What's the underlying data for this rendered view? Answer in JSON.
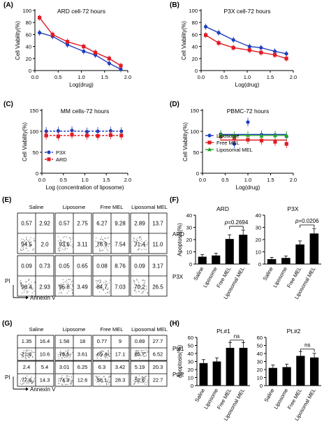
{
  "chart_data": [
    {
      "panel": "(A)",
      "type": "line",
      "title": "ARD cell-72 hours",
      "xlabel": "Log(drug)",
      "ylabel": "Cell Viability(%)",
      "xlim": [
        0,
        2.0
      ],
      "ylim": [
        0,
        100
      ],
      "xticks": [
        "0.0",
        "0.5",
        "1.0",
        "1.5",
        "2.0"
      ],
      "yticks": [
        "0",
        "20",
        "40",
        "60",
        "80",
        "100"
      ],
      "series": [
        {
          "color": "#1f3fbf",
          "marker": "circle",
          "x": [
            0.1,
            0.38,
            0.7,
            1.05,
            1.3,
            1.6,
            1.85
          ],
          "y": [
            63,
            57,
            43,
            32,
            26,
            12,
            2
          ]
        },
        {
          "color": "#e01b24",
          "marker": "square",
          "x": [
            0.1,
            0.38,
            0.7,
            1.05,
            1.3,
            1.6,
            1.85
          ],
          "y": [
            88,
            60,
            48,
            40,
            30,
            20,
            8
          ]
        }
      ]
    },
    {
      "panel": "(B)",
      "type": "line",
      "title": "P3X cell-72 hours",
      "xlabel": "Log(drug)",
      "ylabel": "Cell Viability(%)",
      "xlim": [
        0,
        2.0
      ],
      "ylim": [
        0,
        100
      ],
      "xticks": [
        "0.0",
        "0.5",
        "1.0",
        "1.5",
        "2.0"
      ],
      "yticks": [
        "0",
        "20",
        "40",
        "60",
        "80",
        "100"
      ],
      "series": [
        {
          "color": "#1f3fbf",
          "marker": "circle",
          "x": [
            0.1,
            0.38,
            0.7,
            1.05,
            1.3,
            1.6,
            1.85
          ],
          "y": [
            73,
            63,
            51,
            40,
            38,
            32,
            28
          ]
        },
        {
          "color": "#e01b24",
          "marker": "square",
          "x": [
            0.1,
            0.38,
            0.7,
            1.05,
            1.3,
            1.6,
            1.85
          ],
          "y": [
            59,
            46,
            38,
            34,
            30,
            26,
            20
          ]
        }
      ]
    },
    {
      "panel": "(C)",
      "type": "line",
      "title": "MM cells-72 hours",
      "xlabel": "Log (concentration of liposome)",
      "ylabel": "Cell Viability(%)",
      "xlim": [
        0,
        2.0
      ],
      "ylim": [
        0,
        150
      ],
      "xticks": [
        "0.0",
        "0.5",
        "1.0",
        "1.5",
        "2.0"
      ],
      "yticks": [
        "0",
        "50",
        "100",
        "150"
      ],
      "legend": [
        "P3X",
        "ARD"
      ],
      "legend_position": "bottom-left",
      "series": [
        {
          "name": "P3X",
          "color": "#1f3fbf",
          "marker": "circle",
          "x": [
            0.1,
            0.38,
            0.7,
            1.05,
            1.3,
            1.6,
            1.85
          ],
          "y": [
            100,
            101,
            102,
            99,
            100,
            101,
            100
          ]
        },
        {
          "name": "ARD",
          "color": "#e01b24",
          "marker": "square",
          "x": [
            0.1,
            0.38,
            0.7,
            1.05,
            1.3,
            1.6,
            1.85
          ],
          "y": [
            90,
            88,
            92,
            90,
            89,
            91,
            90
          ]
        }
      ]
    },
    {
      "panel": "(D)",
      "type": "line",
      "title": "PBMC-72 hours",
      "xlabel": "Log(drug)",
      "ylabel": "Cell Viability(%)",
      "xlim": [
        0,
        2.0
      ],
      "ylim": [
        0,
        150
      ],
      "xticks": [
        "0.0",
        "0.5",
        "1.0",
        "1.5",
        "2.0"
      ],
      "yticks": [
        "0",
        "50",
        "100",
        "150"
      ],
      "legend": [
        "Liposome",
        "Free MEL",
        "Liposomal MEL"
      ],
      "legend_position": "bottom-left",
      "series": [
        {
          "name": "Liposome",
          "color": "#1f3fbf",
          "marker": "circle",
          "x": [
            0.4,
            0.7,
            1.0,
            1.3,
            1.6,
            1.85
          ],
          "y": [
            93,
            70,
            122,
            92,
            91,
            88
          ]
        },
        {
          "name": "Free MEL",
          "color": "#e01b24",
          "marker": "square",
          "x": [
            0.4,
            0.7,
            1.0,
            1.3,
            1.6,
            1.85
          ],
          "y": [
            88,
            84,
            80,
            78,
            75,
            70
          ]
        },
        {
          "name": "Liposomal MEL",
          "color": "#2aa52a",
          "marker": "triangle",
          "x": [
            0.4,
            0.7,
            1.0,
            1.3,
            1.6,
            1.85
          ],
          "y": [
            92,
            90,
            91,
            89,
            90,
            90
          ]
        }
      ]
    },
    {
      "panel": "(F)",
      "type": "bar",
      "ylabel": "Apoptosis(%)",
      "ylim": [
        0,
        40
      ],
      "yticks": [
        "0",
        "10",
        "20",
        "30",
        "40"
      ],
      "categories": [
        "Saline",
        "Liposome",
        "Free MEL",
        "Liposomal MEL"
      ],
      "subplots": [
        {
          "title": "ARD",
          "values": [
            6,
            7,
            20.5,
            24
          ],
          "annotation": "p=0.2694"
        },
        {
          "title": "P3X",
          "values": [
            4,
            5,
            16,
            25
          ],
          "annotation": "p=0.0206"
        }
      ]
    },
    {
      "panel": "(H)",
      "type": "bar",
      "ylabel": "Apoptosis(%)",
      "ylim": [
        0,
        60
      ],
      "yticks": [
        "0",
        "10",
        "20",
        "30",
        "40",
        "50",
        "60"
      ],
      "categories": [
        "Saline",
        "Liposome",
        "Free MEL",
        "Liposomal MEL"
      ],
      "subplots": [
        {
          "title": "Pt.#1",
          "values": [
            28,
            30,
            47,
            47
          ],
          "annotation": "ns"
        },
        {
          "title": "Pt.#2",
          "values": [
            22,
            23,
            37,
            35
          ],
          "annotation": "ns"
        }
      ]
    }
  ],
  "flow_e": {
    "panel": "(E)",
    "columns": [
      "Saline",
      "Liposome",
      "Free MEL",
      "Liposomal MEL"
    ],
    "rows": [
      {
        "label": "ARD",
        "quadrants": [
          [
            "0.57",
            "2.92",
            "94.5",
            "2.0"
          ],
          [
            "0.57",
            "2.75",
            "93.6",
            "3.11"
          ],
          [
            "6.27",
            "9.28",
            "76.9",
            "7.54"
          ],
          [
            "2.89",
            "13.7",
            "71.4",
            "11.0"
          ]
        ]
      },
      {
        "label": "P3X",
        "quadrants": [
          [
            "0.09",
            "0.73",
            "96.4",
            "2.93"
          ],
          [
            "0.05",
            "0.65",
            "95.8",
            "3.49"
          ],
          [
            "0.08",
            "8.76",
            "84.7",
            "7.03"
          ],
          [
            "0.09",
            "3.17",
            "70.2",
            "26.5"
          ]
        ]
      }
    ],
    "y_axis": "PI",
    "x_axis": "Annexin V"
  },
  "flow_g": {
    "panel": "(G)",
    "columns": [
      "Saline",
      "Liposome",
      "Free MEL",
      "Liposomal MEL"
    ],
    "rows": [
      {
        "label": "Pt#1",
        "quadrants": [
          [
            "1.35",
            "16.4",
            "71.6",
            "10.6"
          ],
          [
            "1.58",
            "18",
            "76.6",
            "3.61"
          ],
          [
            "0.77",
            "9",
            "69.4",
            "17.1"
          ],
          [
            "0.89",
            "27.7",
            "65.7",
            "6.52"
          ]
        ]
      },
      {
        "label": "Pt#2",
        "quadrants": [
          [
            "2.4",
            "5.4",
            "77.6",
            "14.3"
          ],
          [
            "3.01",
            "6.25",
            "74.3",
            "12.6"
          ],
          [
            "6.3",
            "3.42",
            "58.1",
            "28.3"
          ],
          [
            "5.19",
            "20.3",
            "52.6",
            "22.7"
          ]
        ]
      }
    ],
    "y_axis": "PI",
    "x_axis": "Annexin V"
  }
}
